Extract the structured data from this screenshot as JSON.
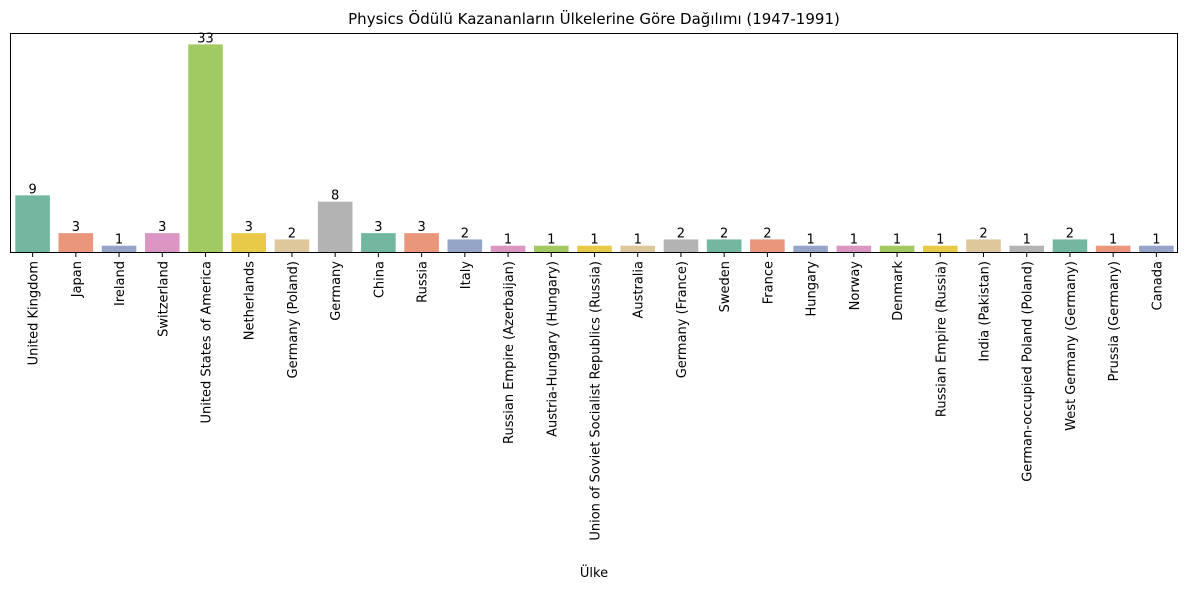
{
  "chart_data": {
    "type": "bar",
    "title": "Physics Ödülü Kazananların Ülkelerine Göre Dağılımı (1947-1991)",
    "xlabel": "Ülke",
    "ylabel": "",
    "ylim": [
      0,
      34.65
    ],
    "grid": false,
    "legend": "none",
    "categories": [
      "United Kingdom",
      "Japan",
      "Ireland",
      "Switzerland",
      "United States of America",
      "Netherlands",
      "Germany (Poland)",
      "Germany",
      "China",
      "Russia",
      "Italy",
      "Russian Empire (Azerbaijan)",
      "Austria-Hungary (Hungary)",
      "Union of Soviet Socialist Republics (Russia)",
      "Australia",
      "Germany (France)",
      "Sweden",
      "France",
      "Hungary",
      "Norway",
      "Denmark",
      "Russian Empire (Russia)",
      "India (Pakistan)",
      "German-occupied Poland (Poland)",
      "West Germany (Germany)",
      "Prussia (Germany)",
      "Canada"
    ],
    "values": [
      9,
      3,
      1,
      3,
      33,
      3,
      2,
      8,
      3,
      3,
      2,
      1,
      1,
      1,
      1,
      2,
      2,
      2,
      1,
      1,
      1,
      1,
      2,
      1,
      2,
      1,
      1
    ],
    "colors": [
      "#72b8a0",
      "#e9967a",
      "#95a5c7",
      "#dc96c4",
      "#a2ca63",
      "#e8ca48",
      "#dfc79c",
      "#b3b3b3"
    ]
  }
}
